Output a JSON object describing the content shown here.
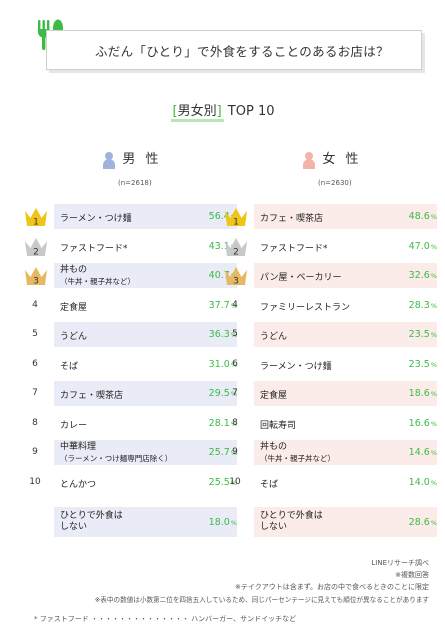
{
  "header": {
    "title": "ふだん「ひとり」で外食をすることのあるお店は？",
    "subtitle_bracket_open": "[",
    "subtitle_main": "男女別",
    "subtitle_bracket_close": "]",
    "subtitle_rest": " TOP 10"
  },
  "colors": {
    "accent": "#3dbb45",
    "male_bar": "#e9ecf6",
    "female_bar": "#fbece9",
    "male_icon": "#9fb3dc",
    "female_icon": "#f2b4a9",
    "gold": "#f0c418",
    "silver": "#c9c9c9",
    "bronze": "#e6b862"
  },
  "chart_data": [
    {
      "type": "table",
      "title": "男 性",
      "n": "(n=2618)",
      "unit": "%",
      "ranks": [
        "1",
        "2",
        "3",
        "4",
        "5",
        "6",
        "7",
        "8",
        "9",
        "10"
      ],
      "categories": [
        "ラーメン・つけ麺",
        "ファストフード*",
        "丼もの",
        "定食屋",
        "うどん",
        "そば",
        "カフェ・喫茶店",
        "カレー",
        "中華料理",
        "とんかつ"
      ],
      "sublabels": [
        "",
        "",
        "（牛丼・親子丼など）",
        "",
        "",
        "",
        "",
        "",
        "（ラーメン・つけ麺専門店除く）",
        ""
      ],
      "values": [
        56.4,
        43.1,
        40.7,
        37.7,
        36.3,
        31.0,
        29.5,
        28.1,
        25.7,
        25.5
      ],
      "extra": {
        "label_line1": "ひとりで外食は",
        "label_line2": "しない",
        "value": 18.0
      }
    },
    {
      "type": "table",
      "title": "女 性",
      "n": "(n=2630)",
      "unit": "%",
      "ranks": [
        "1",
        "2",
        "3",
        "4",
        "5",
        "6",
        "7",
        "8",
        "9",
        "10"
      ],
      "categories": [
        "カフェ・喫茶店",
        "ファストフード*",
        "パン屋・ベーカリー",
        "ファミリーレストラン",
        "うどん",
        "ラーメン・つけ麺",
        "定食屋",
        "回転寿司",
        "丼もの",
        "そば"
      ],
      "sublabels": [
        "",
        "",
        "",
        "",
        "",
        "",
        "",
        "",
        "（牛丼・親子丼など）",
        ""
      ],
      "values": [
        48.6,
        47.0,
        32.6,
        28.3,
        23.5,
        23.5,
        18.6,
        16.6,
        14.6,
        14.0
      ],
      "extra": {
        "label_line1": "ひとりで外食は",
        "label_line2": "しない",
        "value": 28.6
      }
    }
  ],
  "notes": {
    "source": "LINEリサーチ調べ",
    "multi": "※複数回答",
    "takeout": "※テイクアウトは含まず。お店の中で食べるときのことに限定",
    "rounding": "※表中の数値は小数第二位を四捨五入しているため、同じパーセンテージに見えても順位が異なることがあります",
    "footnote": "* ファストフード ・・・・・・・・・・・・・・ ハンバーガー、サンドイッチなど"
  }
}
